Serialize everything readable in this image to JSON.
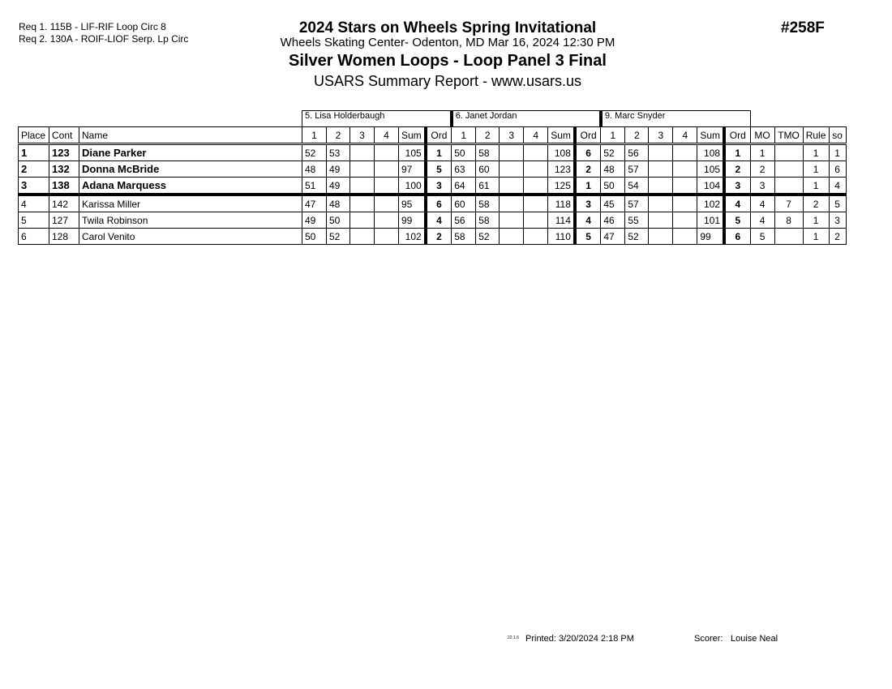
{
  "requirements": [
    "Req  1.  115B - LIF-RIF Loop Circ 8",
    "Req  2.  130A - ROIF-LIOF Serp. Lp Circ"
  ],
  "header": {
    "title": "2024 Stars on Wheels Spring Invitational",
    "location": "Wheels Skating Center- Odenton, MD  Mar 16, 2024  12:30 PM",
    "event": "Silver Women Loops - Loop Panel 3 Final",
    "report": "USARS Summary Report - www.usars.us",
    "event_number": "#258F"
  },
  "judges": [
    "5.  Lisa Holderbaugh",
    "6.  Janet Jordan",
    "9.  Marc Snyder"
  ],
  "columns": {
    "place": "Place",
    "cont": "Cont",
    "name": "Name",
    "judge_cols": [
      "1",
      "2",
      "3",
      "4",
      "Sum",
      "Ord"
    ],
    "mo": "MO",
    "tmo": "TMO",
    "rule": "Rule",
    "so": "so"
  },
  "rows": [
    {
      "place": "1",
      "cont": "123",
      "name": "Diane Parker",
      "bold": true,
      "judges": [
        [
          "52",
          "53",
          "",
          "",
          "105",
          "1"
        ],
        [
          "50",
          "58",
          "",
          "",
          "108",
          "6"
        ],
        [
          "52",
          "56",
          "",
          "",
          "108",
          "1"
        ]
      ],
      "mo": "1",
      "tmo": "",
      "rule": "1",
      "so": "1"
    },
    {
      "place": "2",
      "cont": "132",
      "name": "Donna McBride",
      "bold": true,
      "judges": [
        [
          "48",
          "49",
          "",
          "",
          "97",
          "5"
        ],
        [
          "63",
          "60",
          "",
          "",
          "123",
          "2"
        ],
        [
          "48",
          "57",
          "",
          "",
          "105",
          "2"
        ]
      ],
      "mo": "2",
      "tmo": "",
      "rule": "1",
      "so": "6"
    },
    {
      "place": "3",
      "cont": "138",
      "name": " Adana Marquess",
      "bold": true,
      "judges": [
        [
          "51",
          "49",
          "",
          "",
          "100",
          "3"
        ],
        [
          "64",
          "61",
          "",
          "",
          "125",
          "1"
        ],
        [
          "50",
          "54",
          "",
          "",
          "104",
          "3"
        ]
      ],
      "mo": "3",
      "tmo": "",
      "rule": "1",
      "so": "4"
    },
    {
      "place": "4",
      "cont": "142",
      "name": "Karissa Miller",
      "bold": false,
      "judges": [
        [
          "47",
          "48",
          "",
          "",
          "95",
          "6"
        ],
        [
          "60",
          "58",
          "",
          "",
          "118",
          "3"
        ],
        [
          "45",
          "57",
          "",
          "",
          "102",
          "4"
        ]
      ],
      "mo": "4",
      "tmo": "7",
      "rule": "2",
      "so": "5"
    },
    {
      "place": "5",
      "cont": "127",
      "name": "Twila Robinson",
      "bold": false,
      "judges": [
        [
          "49",
          "50",
          "",
          "",
          "99",
          "4"
        ],
        [
          "56",
          "58",
          "",
          "",
          "114",
          "4"
        ],
        [
          "46",
          "55",
          "",
          "",
          "101",
          "5"
        ]
      ],
      "mo": "4",
      "tmo": "8",
      "rule": "1",
      "so": "3"
    },
    {
      "place": "6",
      "cont": "128",
      "name": "Carol Venito",
      "bold": false,
      "judges": [
        [
          "50",
          "52",
          "",
          "",
          "102",
          "2"
        ],
        [
          "58",
          "52",
          "",
          "",
          "110",
          "5"
        ],
        [
          "47",
          "52",
          "",
          "",
          "99",
          "6"
        ]
      ],
      "mo": "5",
      "tmo": "",
      "rule": "1",
      "so": "2"
    }
  ],
  "footer": {
    "version": "22.1.6",
    "printed": "Printed:  3/20/2024  2:18 PM",
    "scorer_label": "Scorer:",
    "scorer": "Louise Neal"
  }
}
